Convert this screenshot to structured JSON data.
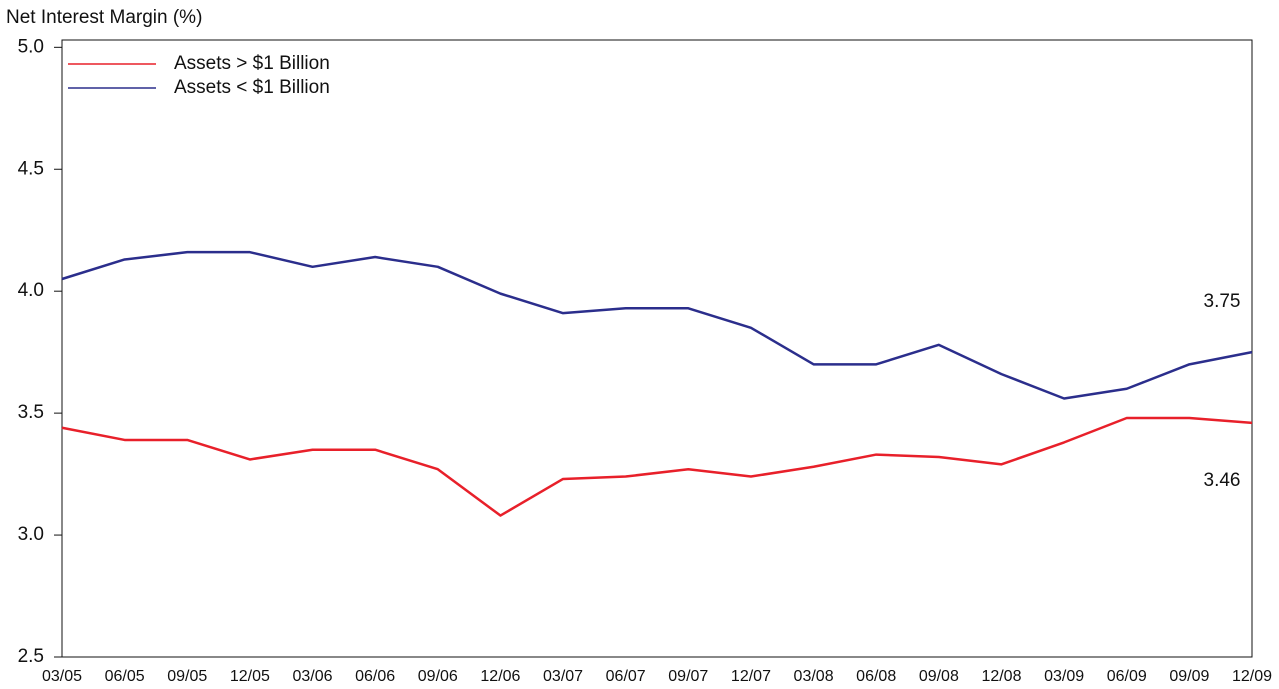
{
  "chart_data": {
    "type": "line",
    "title": "Net Interest Margin (%)",
    "categories": [
      "03/05",
      "06/05",
      "09/05",
      "12/05",
      "03/06",
      "06/06",
      "09/06",
      "12/06",
      "03/07",
      "06/07",
      "09/07",
      "12/07",
      "03/08",
      "06/08",
      "09/08",
      "12/08",
      "03/09",
      "06/09",
      "09/09",
      "12/09"
    ],
    "series": [
      {
        "name": "Assets > $1 Billion",
        "color": "#e8202a",
        "values": [
          3.44,
          3.39,
          3.39,
          3.31,
          3.35,
          3.35,
          3.27,
          3.08,
          3.23,
          3.24,
          3.27,
          3.24,
          3.28,
          3.33,
          3.32,
          3.29,
          3.38,
          3.48,
          3.48,
          3.46
        ]
      },
      {
        "name": "Assets < $1 Billion",
        "color": "#2b2e8c",
        "values": [
          4.05,
          4.13,
          4.16,
          4.16,
          4.1,
          4.14,
          4.1,
          3.99,
          3.91,
          3.93,
          3.93,
          3.85,
          3.7,
          3.7,
          3.78,
          3.66,
          3.56,
          3.6,
          3.7,
          3.75
        ]
      }
    ],
    "annotations": [
      "3.75",
      "3.46"
    ],
    "ylim": [
      2.5,
      5.03
    ],
    "yticks": [
      2.5,
      {
        "value": 3,
        "label": "3.0"
      },
      3.5,
      {
        "value": 4,
        "label": "4.0"
      },
      4.5,
      {
        "value": 5,
        "label": "5.0"
      }
    ],
    "legend": "top-left"
  }
}
